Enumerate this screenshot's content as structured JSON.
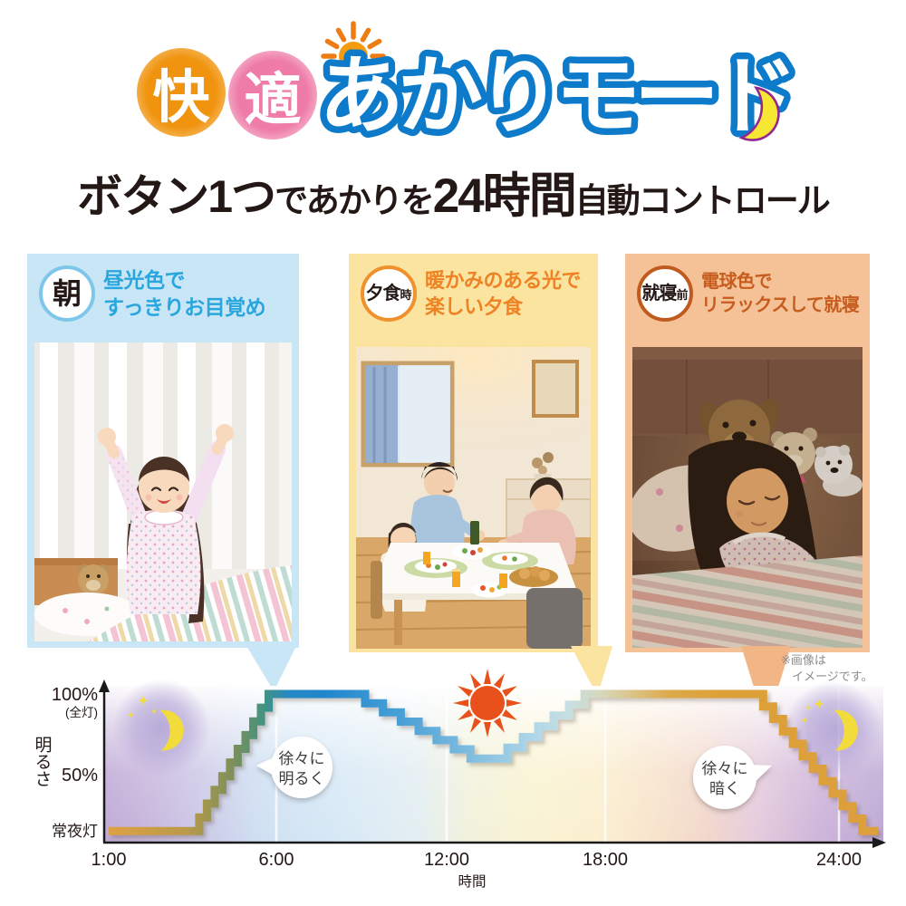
{
  "title": {
    "circle_char1": "快",
    "circle_char2": "適",
    "main": "あかりモード",
    "circle_color1": "#f0930e",
    "circle_color2": "#ee7ba8",
    "outline_color": "#0d7bc9"
  },
  "subtitle": {
    "seg1": "ボタン1つ",
    "seg2": "であかりを",
    "seg3": "24時間",
    "seg4": "自動コントロール"
  },
  "panels": [
    {
      "badge_main": "朝",
      "badge_small": "",
      "line1": "昼光色で",
      "line2": "すっきりお目覚め",
      "accent": "#2aa6de",
      "bg": "#c9e6f6",
      "photo_desc": "朝の寝室で伸びをする女の子"
    },
    {
      "badge_main": "夕食",
      "badge_small": "時",
      "line1": "暖かみのある光で",
      "line2": "楽しい夕食",
      "accent": "#ef8222",
      "bg": "#fbe3a0",
      "photo_desc": "家族で楽しむ夕食"
    },
    {
      "badge_main": "就寝",
      "badge_small": "前",
      "line1": "電球色で",
      "line2": "リラックスして就寝",
      "accent": "#c65c1d",
      "bg": "#f5c197",
      "photo_desc": "ぬいぐるみと眠る女の子"
    }
  ],
  "note": {
    "line1": "※画像は",
    "line2": "イメージです。"
  },
  "chart_data": {
    "type": "line",
    "subtype": "step-staircase",
    "xlabel": "時間",
    "ylabel": "明るさ",
    "x_ticks": [
      {
        "label": "1:00",
        "hour": 1
      },
      {
        "label": "6:00",
        "hour": 6
      },
      {
        "label": "12:00",
        "hour": 12
      },
      {
        "label": "18:00",
        "hour": 18
      },
      {
        "label": "24:00",
        "hour": 24
      }
    ],
    "y_ticks": [
      {
        "label": "100%",
        "sublabel": "(全灯)",
        "value": 100
      },
      {
        "label": "50%",
        "sublabel": "",
        "value": 50
      },
      {
        "label": "常夜灯",
        "sublabel": "",
        "value": 15
      }
    ],
    "ylim": [
      0,
      100
    ],
    "grid": "vertical-white-lines-at-6-12-18-24",
    "legend": "none",
    "series": [
      {
        "name": "明るさ",
        "profile": [
          {
            "kind": "flat",
            "from_hour": 1.0,
            "to_hour": 3.7,
            "level": 15
          },
          {
            "kind": "stair",
            "from_hour": 3.7,
            "to_hour": 6.0,
            "from_level": 15,
            "to_level": 100,
            "steps": 10
          },
          {
            "kind": "flat",
            "from_hour": 6.0,
            "to_hour": 8.5,
            "level": 100
          },
          {
            "kind": "stair",
            "from_hour": 8.5,
            "to_hour": 12.9,
            "from_level": 100,
            "to_level": 60,
            "steps": 7
          },
          {
            "kind": "flat",
            "from_hour": 12.9,
            "to_hour": 14.3,
            "level": 60
          },
          {
            "kind": "stair",
            "from_hour": 14.3,
            "to_hour": 17.8,
            "from_level": 60,
            "to_level": 100,
            "steps": 6
          },
          {
            "kind": "flat",
            "from_hour": 17.8,
            "to_hour": 21.8,
            "level": 100
          },
          {
            "kind": "stair",
            "from_hour": 21.8,
            "to_hour": 24.6,
            "from_level": 100,
            "to_level": 15,
            "steps": 11
          },
          {
            "kind": "flat",
            "from_hour": 24.6,
            "to_hour": 25.0,
            "level": 15
          }
        ]
      }
    ],
    "annotations": [
      {
        "line1": "徐々に",
        "line2": "明るく",
        "near": "sunrise-staircase"
      },
      {
        "line1": "徐々に",
        "line2": "暗く",
        "near": "night-staircase"
      }
    ],
    "decorations": [
      "moon-icon-left",
      "sun-icon-noon",
      "moon-icon-right"
    ]
  }
}
